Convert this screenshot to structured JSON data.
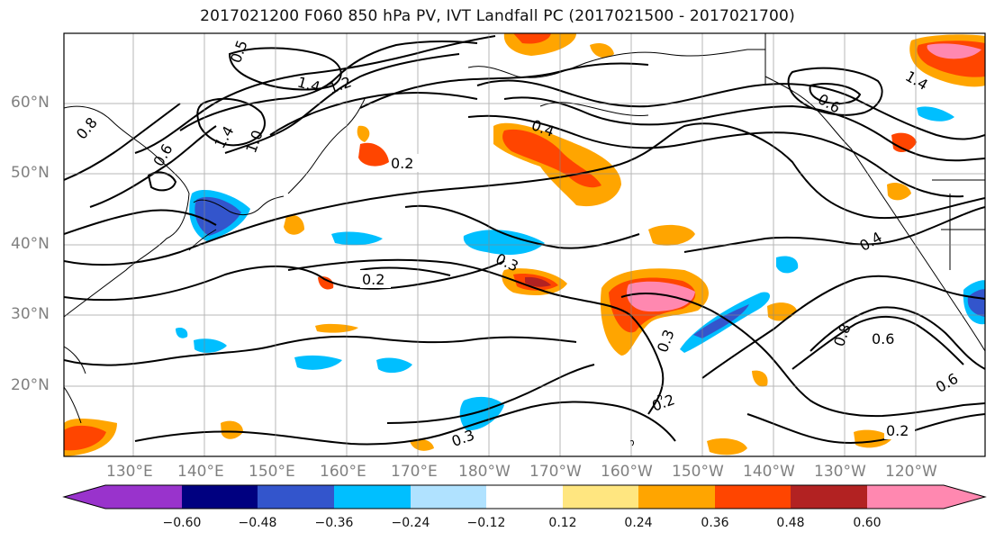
{
  "title": "2017021200 F060 850 hPa PV, IVT Landfall PC (2017021500 - 2017021700)",
  "map": {
    "lat_labels": [
      "60°N",
      "50°N",
      "40°N",
      "30°N",
      "20°N"
    ],
    "lon_labels": [
      "130°E",
      "140°E",
      "150°E",
      "160°E",
      "170°E",
      "180°W",
      "170°W",
      "160°W",
      "150°W",
      "140°W",
      "130°W",
      "120°W"
    ],
    "contour_labels": [
      "0.2",
      "0.2",
      "0.2",
      "0.3",
      "0.3",
      "0.3",
      "0.2",
      "0.6",
      "0.8",
      "0.6",
      "1.4",
      "1.2",
      "1.0",
      "1.4",
      "0.8",
      "0.6",
      "0.5",
      "0.4",
      "1.4",
      "0.6",
      "0.4"
    ],
    "colors": {
      "contour": "#000000",
      "coast": "#000000",
      "grid": "#888888"
    }
  },
  "colorbar": {
    "ticks": [
      "−0.60",
      "−0.48",
      "−0.36",
      "−0.24",
      "−0.12",
      "0.12",
      "0.24",
      "0.36",
      "0.48",
      "0.60"
    ],
    "colors": [
      "#9933cc",
      "#000080",
      "#3355cc",
      "#00bfff",
      "#b0e2ff",
      "#ffffff",
      "#ffe680",
      "#ffa500",
      "#ff4500",
      "#b22222",
      "#ff88b0"
    ]
  }
}
